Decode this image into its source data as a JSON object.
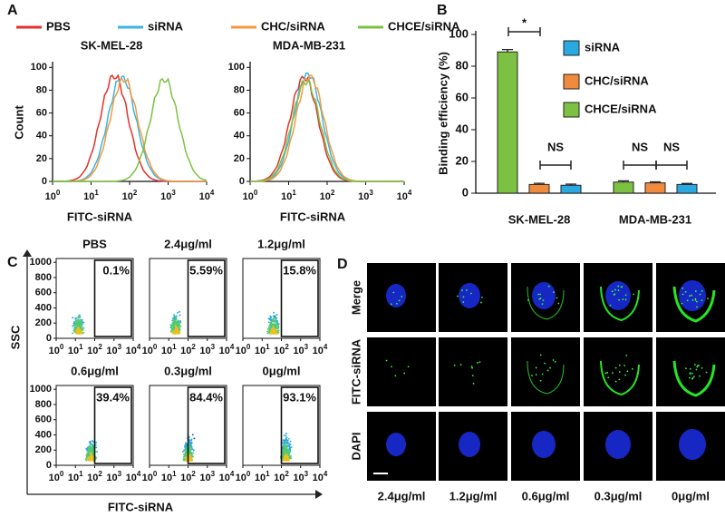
{
  "panel_a": {
    "label": "A",
    "legend": [
      {
        "name": "PBS",
        "color": "#e8302c"
      },
      {
        "name": "siRNA",
        "color": "#3ab5e6"
      },
      {
        "name": "CHC/siRNA",
        "color": "#f59a3c"
      },
      {
        "name": "CHCE/siRNA",
        "color": "#7cc242"
      }
    ],
    "plots": [
      {
        "title": "SK-MEL-28",
        "peaks": [
          {
            "x": 1.6,
            "count": 93
          },
          {
            "x": 1.8,
            "count": 92
          },
          {
            "x": 1.85,
            "count": 90
          },
          {
            "x": 2.9,
            "count": 90
          }
        ]
      },
      {
        "title": "MDA-MB-231",
        "peaks": [
          {
            "x": 1.4,
            "count": 92
          },
          {
            "x": 1.5,
            "count": 95
          },
          {
            "x": 1.55,
            "count": 93
          },
          {
            "x": 1.45,
            "count": 88
          }
        ]
      }
    ],
    "ylabel": "Count",
    "xlabel": "FITC-siRNA",
    "ylim": [
      0,
      105
    ],
    "yticks": [
      0,
      20,
      40,
      60,
      80,
      100
    ],
    "xlim": [
      0,
      4
    ],
    "xtick_base": "10",
    "xtick_exponents": [
      0,
      1,
      2,
      3,
      4
    ]
  },
  "chart_data": {
    "type": "bar",
    "label": "B",
    "ylabel": "Binding efficiency (%)",
    "categories": [
      "SK-MEL-28",
      "MDA-MB-231"
    ],
    "series": [
      {
        "name": "siRNA",
        "color": "#29a9e0",
        "values": [
          5,
          5.5
        ],
        "errors": [
          0.7,
          0.6
        ]
      },
      {
        "name": "CHC/siRNA",
        "color": "#f08a3c",
        "values": [
          5.5,
          6.5
        ],
        "errors": [
          0.7,
          0.6
        ]
      },
      {
        "name": "CHCE/siRNA",
        "color": "#7dc142",
        "values": [
          89,
          7
        ],
        "errors": [
          1.5,
          0.8
        ]
      }
    ],
    "ylim": [
      0,
      100
    ],
    "yticks": [
      0,
      20,
      40,
      60,
      80,
      100
    ],
    "annotations": [
      "*",
      "NS",
      "NS",
      "NS"
    ]
  },
  "panel_c": {
    "label": "C",
    "plots": [
      {
        "title": "PBS",
        "gate": "0.1%"
      },
      {
        "title": "2.4μg/ml",
        "gate": "5.59%"
      },
      {
        "title": "1.2μg/ml",
        "gate": "15.8%"
      },
      {
        "title": "0.6μg/ml",
        "gate": "39.4%"
      },
      {
        "title": "0.3μg/ml",
        "gate": "84.4%"
      },
      {
        "title": "0μg/ml",
        "gate": "93.1%"
      }
    ],
    "ylabel": "SSC",
    "xlabel": "FITC-siRNA",
    "ylim": [
      0,
      1050
    ],
    "yticks": [
      0,
      200,
      400,
      600,
      800,
      1000
    ],
    "xlim": [
      0,
      4
    ],
    "xtick_base": "10",
    "xtick_exponents": [
      0,
      1,
      2,
      3,
      4
    ]
  },
  "panel_d": {
    "label": "D",
    "rows": [
      "Merge",
      "FITC-siRNA",
      "DAPI"
    ],
    "columns": [
      "2.4μg/ml",
      "1.2μg/ml",
      "0.6μg/ml",
      "0.3μg/ml",
      "0μg/ml"
    ]
  }
}
